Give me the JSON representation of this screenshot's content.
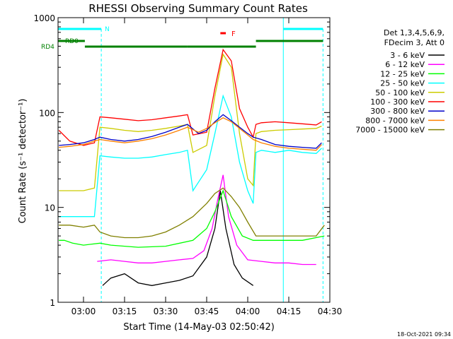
{
  "chart_data": {
    "type": "line",
    "title": "RHESSI Observing Summary Count Rates",
    "xlabel": "Start Time (14-May-03 02:50:42)",
    "ylabel": "Count Rate (s⁻¹ detector⁻¹)",
    "yscale": "log",
    "xlim": [
      "02:50:42",
      "04:30:00"
    ],
    "ylim": [
      1,
      1000
    ],
    "x_ticks": [
      "03:00",
      "03:15",
      "03:30",
      "03:45",
      "04:00",
      "04:15",
      "04:30"
    ],
    "y_ticks": [
      "1",
      "10",
      "100",
      "1000"
    ],
    "grid": false,
    "legend_placement": "right",
    "legend_header": [
      "Det 1,3,4,5,6,9,",
      "FDecim 3, Att 0"
    ],
    "timestamp": "18-Oct-2021 09:34",
    "flags": {
      "labels": {
        "n": "N",
        "f": "F",
        "rd0": "RD0",
        "rd4": "RD4"
      },
      "night_intervals": [
        [
          "02:50:42",
          "03:06:30"
        ],
        [
          "04:13:00",
          "04:27:30"
        ]
      ],
      "saa_intervals": [
        [
          "02:50:42",
          "02:52:30"
        ],
        [
          "04:13:00",
          "04:13:20"
        ]
      ],
      "flare_interval": [
        "03:50:00",
        "03:52:00"
      ],
      "rd_intervals": [
        [
          "02:50:42",
          "03:00:30"
        ],
        [
          "03:00:30",
          "03:38:00"
        ],
        [
          "03:38:00",
          "04:03:00"
        ],
        [
          "04:03:00",
          "04:27:30"
        ]
      ],
      "colors": {
        "night": "#00ffff",
        "flare": "#ff0000",
        "rd": "#008000"
      }
    },
    "series": [
      {
        "name": "3 - 6 keV",
        "color": "#000000",
        "x": [
          "03:07",
          "03:10",
          "03:15",
          "03:20",
          "03:25",
          "03:30",
          "03:35",
          "03:40",
          "03:45",
          "03:48",
          "03:50",
          "03:52",
          "03:55",
          "03:58",
          "04:02"
        ],
        "y": [
          1.5,
          1.8,
          2.0,
          1.6,
          1.5,
          1.6,
          1.7,
          1.9,
          3,
          6,
          15,
          6,
          2.5,
          1.8,
          1.5
        ]
      },
      {
        "name": "6 - 12 keV",
        "color": "#ff00ff",
        "x": [
          "03:05",
          "03:10",
          "03:15",
          "03:20",
          "03:25",
          "03:30",
          "03:35",
          "03:40",
          "03:44",
          "03:47",
          "03:49",
          "03:51",
          "03:53",
          "03:56",
          "04:00",
          "04:05",
          "04:10",
          "04:15",
          "04:20",
          "04:25"
        ],
        "y": [
          2.7,
          2.8,
          2.7,
          2.6,
          2.6,
          2.7,
          2.8,
          2.9,
          3.5,
          6,
          12,
          22,
          8,
          4,
          2.8,
          2.7,
          2.6,
          2.6,
          2.5,
          2.5
        ]
      },
      {
        "name": "12 - 25 keV",
        "color": "#00ff00",
        "x": [
          "02:51",
          "02:53",
          "02:56",
          "03:00",
          "03:06",
          "03:10",
          "03:20",
          "03:30",
          "03:40",
          "03:45",
          "03:48",
          "03:51",
          "03:54",
          "03:58",
          "04:02",
          "04:10",
          "04:20",
          "04:28"
        ],
        "y": [
          4.5,
          4.5,
          4.2,
          4.0,
          4.2,
          4.0,
          3.8,
          3.9,
          4.5,
          6,
          9,
          15,
          8,
          5,
          4.5,
          4.5,
          4.5,
          5.0
        ]
      },
      {
        "name": "25 - 50 keV",
        "color": "#00ffff",
        "x": [
          "02:51",
          "02:55",
          "03:00",
          "03:04",
          "03:06",
          "03:10",
          "03:15",
          "03:20",
          "03:25",
          "03:30",
          "03:35",
          "03:38",
          "03:40",
          "03:45",
          "03:48",
          "03:51",
          "03:54",
          "03:57",
          "04:00",
          "04:02",
          "04:03",
          "04:05",
          "04:10",
          "04:15",
          "04:20",
          "04:25",
          "04:27"
        ],
        "y": [
          8,
          8,
          8,
          8,
          35,
          34,
          33,
          33,
          34,
          36,
          38,
          40,
          15,
          25,
          60,
          150,
          90,
          30,
          15,
          11,
          38,
          40,
          38,
          40,
          38,
          37,
          42
        ]
      },
      {
        "name": "50 - 100 keV",
        "color": "#cccc00",
        "x": [
          "02:51",
          "02:55",
          "03:00",
          "03:04",
          "03:06",
          "03:10",
          "03:15",
          "03:20",
          "03:25",
          "03:30",
          "03:35",
          "03:38",
          "03:40",
          "03:45",
          "03:48",
          "03:51",
          "03:54",
          "03:57",
          "04:00",
          "04:02",
          "04:03",
          "04:05",
          "04:10",
          "04:15",
          "04:20",
          "04:25",
          "04:27"
        ],
        "y": [
          15,
          15,
          15,
          16,
          70,
          68,
          65,
          63,
          65,
          68,
          72,
          75,
          38,
          45,
          150,
          410,
          300,
          60,
          20,
          17,
          60,
          63,
          65,
          66,
          67,
          68,
          72
        ]
      },
      {
        "name": "100 - 300 keV",
        "color": "#ff0000",
        "x": [
          "02:51",
          "02:55",
          "03:00",
          "03:04",
          "03:06",
          "03:10",
          "03:15",
          "03:20",
          "03:25",
          "03:30",
          "03:35",
          "03:38",
          "03:40",
          "03:45",
          "03:48",
          "03:51",
          "03:54",
          "03:57",
          "04:00",
          "04:02",
          "04:03",
          "04:05",
          "04:10",
          "04:15",
          "04:20",
          "04:25",
          "04:27"
        ],
        "y": [
          65,
          50,
          45,
          48,
          90,
          88,
          85,
          82,
          84,
          88,
          92,
          95,
          58,
          62,
          180,
          460,
          350,
          110,
          70,
          55,
          75,
          78,
          80,
          78,
          76,
          74,
          80
        ]
      },
      {
        "name": "300 - 800 keV",
        "color": "#0000c8",
        "x": [
          "02:51",
          "02:55",
          "03:00",
          "03:04",
          "03:06",
          "03:10",
          "03:15",
          "03:20",
          "03:25",
          "03:30",
          "03:35",
          "03:38",
          "03:42",
          "03:45",
          "03:48",
          "03:51",
          "03:54",
          "03:57",
          "04:00",
          "04:02",
          "04:05",
          "04:10",
          "04:15",
          "04:20",
          "04:25",
          "04:27"
        ],
        "y": [
          45,
          46,
          48,
          52,
          55,
          52,
          50,
          52,
          56,
          62,
          70,
          75,
          60,
          65,
          80,
          95,
          82,
          70,
          60,
          55,
          52,
          46,
          44,
          43,
          42,
          48
        ]
      },
      {
        "name": "800 - 7000 keV",
        "color": "#ff8000",
        "x": [
          "02:51",
          "02:55",
          "03:00",
          "03:04",
          "03:06",
          "03:10",
          "03:15",
          "03:20",
          "03:25",
          "03:30",
          "03:35",
          "03:38",
          "03:42",
          "03:45",
          "03:48",
          "03:51",
          "03:54",
          "03:57",
          "04:00",
          "04:02",
          "04:05",
          "04:10",
          "04:15",
          "04:20",
          "04:25",
          "04:27"
        ],
        "y": [
          43,
          44,
          46,
          50,
          52,
          50,
          48,
          50,
          53,
          58,
          65,
          70,
          62,
          68,
          78,
          88,
          80,
          68,
          58,
          52,
          48,
          44,
          42,
          41,
          40,
          46
        ]
      },
      {
        "name": "7000 - 15000 keV",
        "color": "#808000",
        "x": [
          "02:51",
          "02:55",
          "03:00",
          "03:04",
          "03:06",
          "03:10",
          "03:15",
          "03:20",
          "03:25",
          "03:30",
          "03:35",
          "03:40",
          "03:45",
          "03:48",
          "03:51",
          "03:54",
          "03:57",
          "04:00",
          "04:03",
          "04:06",
          "04:10",
          "04:15",
          "04:20",
          "04:25",
          "04:28"
        ],
        "y": [
          6.5,
          6.5,
          6.2,
          6.5,
          5.5,
          5.0,
          4.8,
          4.8,
          5.0,
          5.5,
          6.5,
          8,
          11,
          14,
          16,
          13,
          10,
          7,
          5,
          5,
          5,
          5,
          5,
          5,
          6.5
        ]
      }
    ]
  }
}
